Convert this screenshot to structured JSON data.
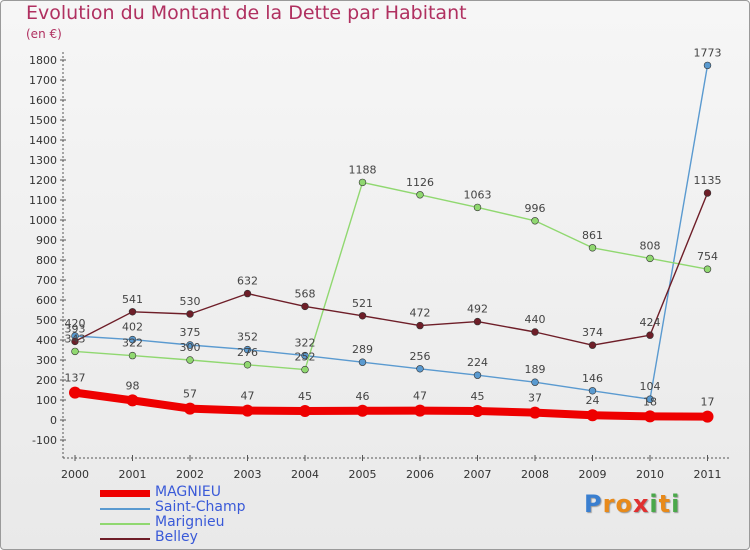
{
  "title": "Evolution du Montant de la Dette par Habitant",
  "unit": "(en €)",
  "brand": {
    "letters": [
      "P",
      "r",
      "o",
      "x",
      "i",
      "t",
      "i"
    ],
    "colors": [
      "#3a7fd0",
      "#e88a1a",
      "#e88a1a",
      "#e03030",
      "#4aa84a",
      "#e88a1a",
      "#4aa84a"
    ]
  },
  "chart_data": {
    "type": "line",
    "x": [
      "2000",
      "2001",
      "2002",
      "2003",
      "2004",
      "2005",
      "2006",
      "2007",
      "2008",
      "2009",
      "2010",
      "2011"
    ],
    "yticks": [
      "-100",
      "0",
      "100",
      "200",
      "300",
      "400",
      "500",
      "600",
      "700",
      "800",
      "900",
      "1000",
      "1100",
      "1200",
      "1300",
      "1400",
      "1500",
      "1600",
      "1700",
      "1800"
    ],
    "ylim": [
      -100,
      1800
    ],
    "grid": false,
    "legend_position": "bottom-left",
    "series": [
      {
        "name": "MAGNIEU",
        "color": "#ee0000",
        "values": [
          137,
          98,
          57,
          47,
          45,
          46,
          47,
          45,
          37,
          24,
          18,
          17
        ],
        "labels": [
          "137",
          "98",
          "57",
          "47",
          "45",
          "46",
          "47",
          "45",
          "37",
          "24",
          "18",
          "17"
        ]
      },
      {
        "name": "Saint-Champ",
        "color": "#5a9ad0",
        "values": [
          420,
          402,
          375,
          352,
          322,
          289,
          256,
          224,
          189,
          146,
          104,
          1773
        ],
        "labels": [
          "420",
          "402",
          "375",
          "352",
          "322",
          "289",
          "256",
          "224",
          "189",
          "146",
          "104",
          "1773"
        ]
      },
      {
        "name": "Marignieu",
        "color": "#90d870",
        "values": [
          343,
          322,
          300,
          276,
          252,
          1188,
          1126,
          1063,
          996,
          861,
          808,
          754
        ],
        "labels": [
          "343",
          "322",
          "300",
          "276",
          "252",
          "1188",
          "1126",
          "1063",
          "996",
          "861",
          "808",
          "754"
        ]
      },
      {
        "name": "Belley",
        "color": "#6e1e28",
        "values": [
          393,
          541,
          530,
          632,
          568,
          521,
          472,
          492,
          440,
          374,
          424,
          1135
        ],
        "labels": [
          "393",
          "541",
          "530",
          "632",
          "568",
          "521",
          "472",
          "492",
          "440",
          "374",
          "424",
          "1135"
        ]
      }
    ]
  }
}
